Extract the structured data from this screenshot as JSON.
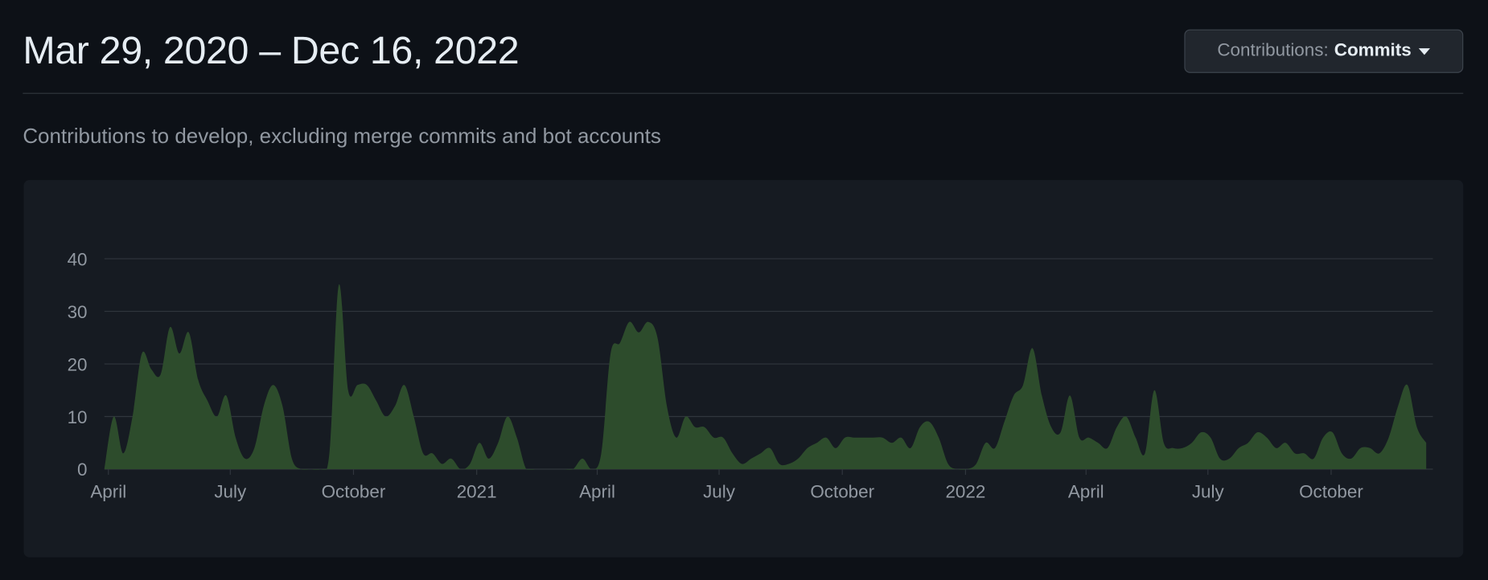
{
  "header": {
    "title": "Mar 29, 2020 – Dec 16, 2022",
    "filter_label": "Contributions:",
    "filter_value": "Commits"
  },
  "description": "Contributions to develop, excluding merge commits and bot accounts",
  "chart_data": {
    "type": "area",
    "x": [
      "2020-03-29",
      "2020-04-05",
      "2020-04-12",
      "2020-04-19",
      "2020-04-26",
      "2020-05-03",
      "2020-05-10",
      "2020-05-17",
      "2020-05-24",
      "2020-05-31",
      "2020-06-07",
      "2020-06-14",
      "2020-06-21",
      "2020-06-28",
      "2020-07-05",
      "2020-07-12",
      "2020-07-19",
      "2020-07-26",
      "2020-08-02",
      "2020-08-09",
      "2020-08-16",
      "2020-08-23",
      "2020-08-30",
      "2020-09-06",
      "2020-09-13",
      "2020-09-20",
      "2020-09-27",
      "2020-10-04",
      "2020-10-11",
      "2020-10-18",
      "2020-10-25",
      "2020-11-01",
      "2020-11-08",
      "2020-11-15",
      "2020-11-22",
      "2020-11-29",
      "2020-12-06",
      "2020-12-13",
      "2020-12-20",
      "2020-12-27",
      "2021-01-03",
      "2021-01-10",
      "2021-01-17",
      "2021-01-24",
      "2021-01-31",
      "2021-02-07",
      "2021-02-14",
      "2021-02-21",
      "2021-02-28",
      "2021-03-07",
      "2021-03-14",
      "2021-03-21",
      "2021-03-28",
      "2021-04-04",
      "2021-04-11",
      "2021-04-18",
      "2021-04-25",
      "2021-05-02",
      "2021-05-09",
      "2021-05-16",
      "2021-05-23",
      "2021-05-30",
      "2021-06-06",
      "2021-06-13",
      "2021-06-20",
      "2021-06-27",
      "2021-07-04",
      "2021-07-11",
      "2021-07-18",
      "2021-07-25",
      "2021-08-01",
      "2021-08-08",
      "2021-08-15",
      "2021-08-22",
      "2021-08-29",
      "2021-09-05",
      "2021-09-12",
      "2021-09-19",
      "2021-09-26",
      "2021-10-03",
      "2021-10-10",
      "2021-10-17",
      "2021-10-24",
      "2021-10-31",
      "2021-11-07",
      "2021-11-14",
      "2021-11-21",
      "2021-11-28",
      "2021-12-05",
      "2021-12-12",
      "2021-12-19",
      "2021-12-26",
      "2022-01-02",
      "2022-01-09",
      "2022-01-16",
      "2022-01-23",
      "2022-01-30",
      "2022-02-06",
      "2022-02-13",
      "2022-02-20",
      "2022-02-27",
      "2022-03-06",
      "2022-03-13",
      "2022-03-20",
      "2022-03-27",
      "2022-04-03",
      "2022-04-10",
      "2022-04-17",
      "2022-04-24",
      "2022-05-01",
      "2022-05-08",
      "2022-05-15",
      "2022-05-22",
      "2022-05-29",
      "2022-06-05",
      "2022-06-12",
      "2022-06-19",
      "2022-06-26",
      "2022-07-03",
      "2022-07-10",
      "2022-07-17",
      "2022-07-24",
      "2022-07-31",
      "2022-08-07",
      "2022-08-14",
      "2022-08-21",
      "2022-08-28",
      "2022-09-04",
      "2022-09-11",
      "2022-09-18",
      "2022-09-25",
      "2022-10-02",
      "2022-10-09",
      "2022-10-16",
      "2022-10-23",
      "2022-10-30",
      "2022-11-06",
      "2022-11-13",
      "2022-11-20",
      "2022-11-27",
      "2022-12-04",
      "2022-12-11"
    ],
    "series": [
      {
        "color": "#2d4c2c",
        "values": [
          0,
          10,
          3,
          10,
          22,
          19,
          18,
          27,
          22,
          26,
          17,
          13,
          10,
          14,
          6,
          2,
          4,
          12,
          16,
          12,
          2,
          0,
          0,
          0,
          3,
          35,
          15,
          16,
          16,
          13,
          10,
          12,
          16,
          10,
          3,
          3,
          1,
          2,
          0,
          1,
          5,
          2,
          5,
          10,
          6,
          0,
          0,
          0,
          0,
          0,
          0,
          2,
          0,
          3,
          22,
          24,
          28,
          26,
          28,
          25,
          12,
          6,
          10,
          8,
          8,
          6,
          6,
          3,
          1,
          2,
          3,
          4,
          1,
          1,
          2,
          4,
          5,
          6,
          4,
          6,
          6,
          6,
          6,
          6,
          5,
          6,
          4,
          8,
          9,
          6,
          1,
          0,
          0,
          1,
          5,
          4,
          9,
          14,
          16,
          23,
          14,
          8,
          7,
          14,
          6,
          6,
          5,
          4,
          8,
          10,
          6,
          3,
          15,
          5,
          4,
          4,
          5,
          7,
          6,
          2,
          2,
          4,
          5,
          7,
          6,
          4,
          5,
          3,
          3,
          2,
          6,
          7,
          3,
          2,
          4,
          4,
          3,
          6,
          12,
          16,
          8,
          5
        ]
      }
    ],
    "xlim": [
      "2020-03-29",
      "2022-12-16"
    ],
    "xticks": [
      {
        "value": "2020-04-01",
        "label": "April"
      },
      {
        "value": "2020-07-01",
        "label": "July"
      },
      {
        "value": "2020-10-01",
        "label": "October"
      },
      {
        "value": "2021-01-01",
        "label": "2021"
      },
      {
        "value": "2021-04-01",
        "label": "April"
      },
      {
        "value": "2021-07-01",
        "label": "July"
      },
      {
        "value": "2021-10-01",
        "label": "October"
      },
      {
        "value": "2022-01-01",
        "label": "2022"
      },
      {
        "value": "2022-04-01",
        "label": "April"
      },
      {
        "value": "2022-07-01",
        "label": "July"
      },
      {
        "value": "2022-10-01",
        "label": "October"
      }
    ],
    "ylim": [
      0,
      40
    ],
    "yticks": [
      0,
      10,
      20,
      30,
      40
    ],
    "grid": true
  }
}
